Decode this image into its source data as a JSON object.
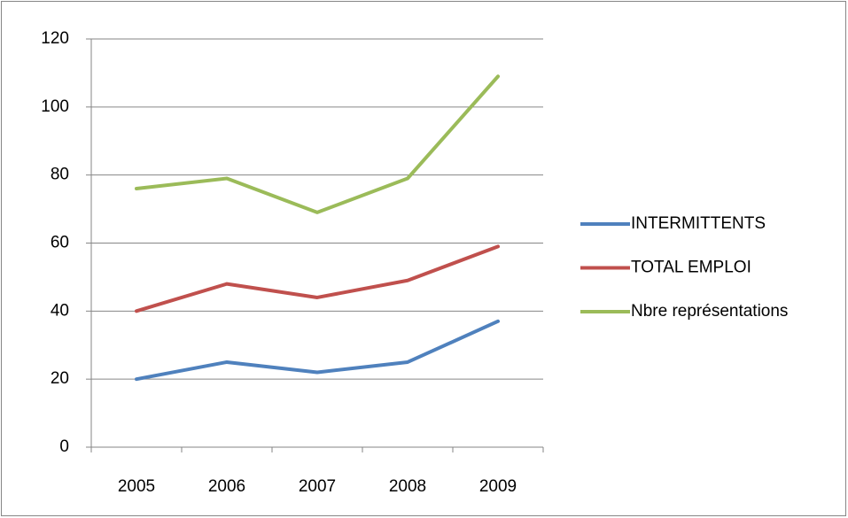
{
  "chart_data": {
    "type": "line",
    "categories": [
      "2005",
      "2006",
      "2007",
      "2008",
      "2009"
    ],
    "series": [
      {
        "name": "INTERMITTENTS",
        "color": "#4f81bd",
        "values": [
          20,
          25,
          22,
          25,
          37
        ]
      },
      {
        "name": "TOTAL EMPLOI",
        "color": "#c0504d",
        "values": [
          40,
          48,
          44,
          49,
          59
        ]
      },
      {
        "name": "Nbre représentations",
        "color": "#9bbb59",
        "values": [
          76,
          79,
          69,
          79,
          109
        ]
      }
    ],
    "ylim": [
      0,
      120
    ],
    "yticks": [
      0,
      20,
      40,
      60,
      80,
      100,
      120
    ],
    "grid": true,
    "legend": "right"
  }
}
